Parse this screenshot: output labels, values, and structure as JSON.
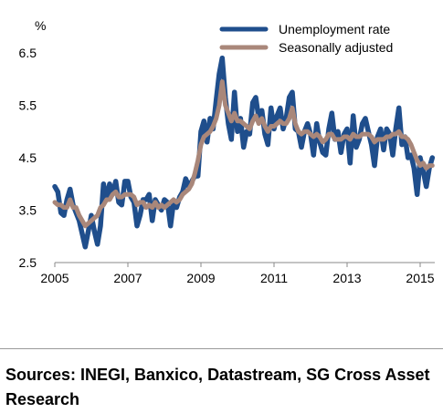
{
  "chart_data": {
    "type": "line",
    "ylabel": "%",
    "ylim": [
      2.5,
      6.5
    ],
    "yticks": [
      "6.5",
      "5.5",
      "4.5",
      "3.5",
      "2.5"
    ],
    "xlim": [
      2005,
      2015.4
    ],
    "xticks": [
      "2005",
      "2007",
      "2009",
      "2011",
      "2013",
      "2015"
    ],
    "grid": false,
    "legend_position": "top-right",
    "series": [
      {
        "name": "Unemployment rate",
        "color": "#1f4e8c",
        "x": [
          2005.0,
          2005.083,
          2005.167,
          2005.25,
          2005.333,
          2005.417,
          2005.5,
          2005.583,
          2005.667,
          2005.75,
          2005.833,
          2005.917,
          2006.0,
          2006.083,
          2006.167,
          2006.25,
          2006.333,
          2006.417,
          2006.5,
          2006.583,
          2006.667,
          2006.75,
          2006.833,
          2006.917,
          2007.0,
          2007.083,
          2007.167,
          2007.25,
          2007.333,
          2007.417,
          2007.5,
          2007.583,
          2007.667,
          2007.75,
          2007.833,
          2007.917,
          2008.0,
          2008.083,
          2008.167,
          2008.25,
          2008.333,
          2008.417,
          2008.5,
          2008.583,
          2008.667,
          2008.75,
          2008.833,
          2008.917,
          2009.0,
          2009.083,
          2009.167,
          2009.25,
          2009.333,
          2009.417,
          2009.5,
          2009.583,
          2009.667,
          2009.75,
          2009.833,
          2009.917,
          2010.0,
          2010.083,
          2010.167,
          2010.25,
          2010.333,
          2010.417,
          2010.5,
          2010.583,
          2010.667,
          2010.75,
          2010.833,
          2010.917,
          2011.0,
          2011.083,
          2011.167,
          2011.25,
          2011.333,
          2011.417,
          2011.5,
          2011.583,
          2011.667,
          2011.75,
          2011.833,
          2011.917,
          2012.0,
          2012.083,
          2012.167,
          2012.25,
          2012.333,
          2012.417,
          2012.5,
          2012.583,
          2012.667,
          2012.75,
          2012.833,
          2012.917,
          2013.0,
          2013.083,
          2013.167,
          2013.25,
          2013.333,
          2013.417,
          2013.5,
          2013.583,
          2013.667,
          2013.75,
          2013.833,
          2013.917,
          2014.0,
          2014.083,
          2014.167,
          2014.25,
          2014.333,
          2014.417,
          2014.5,
          2014.583,
          2014.667,
          2014.75,
          2014.833,
          2014.917,
          2015.0,
          2015.083,
          2015.167,
          2015.25,
          2015.333
        ],
        "values": [
          3.95,
          3.85,
          3.45,
          3.4,
          3.7,
          3.9,
          3.6,
          3.45,
          3.3,
          3.05,
          2.8,
          3.1,
          3.4,
          3.1,
          2.85,
          3.2,
          4.0,
          3.7,
          4.0,
          3.8,
          4.05,
          3.65,
          3.6,
          4.05,
          4.05,
          3.75,
          3.65,
          3.2,
          3.4,
          3.7,
          3.7,
          3.8,
          3.3,
          3.7,
          3.6,
          3.5,
          3.7,
          3.65,
          3.2,
          3.65,
          3.55,
          3.75,
          3.85,
          4.1,
          3.95,
          4.05,
          4.15,
          4.15,
          5.0,
          5.2,
          4.8,
          5.25,
          5.05,
          5.6,
          6.1,
          6.4,
          5.65,
          5.15,
          4.85,
          5.75,
          5.0,
          5.25,
          4.7,
          5.0,
          4.95,
          5.55,
          5.65,
          5.25,
          5.4,
          4.95,
          4.75,
          5.45,
          5.05,
          5.3,
          5.45,
          5.05,
          5.25,
          5.65,
          5.75,
          5.05,
          5.0,
          4.7,
          5.0,
          5.15,
          4.95,
          4.55,
          5.15,
          4.8,
          4.6,
          4.55,
          5.05,
          5.35,
          4.85,
          5.0,
          4.6,
          4.95,
          5.05,
          4.4,
          5.3,
          4.7,
          4.85,
          5.15,
          5.25,
          5.0,
          4.75,
          4.35,
          4.9,
          5.05,
          4.65,
          5.05,
          4.95,
          4.55,
          5.05,
          5.45,
          4.75,
          4.9,
          4.5,
          4.55,
          4.3,
          3.8,
          4.5,
          4.25,
          3.95,
          4.3,
          4.5
        ]
      },
      {
        "name": "Seasonally adjusted",
        "color": "#a9877a",
        "x": [
          2005.0,
          2005.083,
          2005.167,
          2005.25,
          2005.333,
          2005.417,
          2005.5,
          2005.583,
          2005.667,
          2005.75,
          2005.833,
          2005.917,
          2006.0,
          2006.083,
          2006.167,
          2006.25,
          2006.333,
          2006.417,
          2006.5,
          2006.583,
          2006.667,
          2006.75,
          2006.833,
          2006.917,
          2007.0,
          2007.083,
          2007.167,
          2007.25,
          2007.333,
          2007.417,
          2007.5,
          2007.583,
          2007.667,
          2007.75,
          2007.833,
          2007.917,
          2008.0,
          2008.083,
          2008.167,
          2008.25,
          2008.333,
          2008.417,
          2008.5,
          2008.583,
          2008.667,
          2008.75,
          2008.833,
          2008.917,
          2009.0,
          2009.083,
          2009.167,
          2009.25,
          2009.333,
          2009.417,
          2009.5,
          2009.583,
          2009.667,
          2009.75,
          2009.833,
          2009.917,
          2010.0,
          2010.083,
          2010.167,
          2010.25,
          2010.333,
          2010.417,
          2010.5,
          2010.583,
          2010.667,
          2010.75,
          2010.833,
          2010.917,
          2011.0,
          2011.083,
          2011.167,
          2011.25,
          2011.333,
          2011.417,
          2011.5,
          2011.583,
          2011.667,
          2011.75,
          2011.833,
          2011.917,
          2012.0,
          2012.083,
          2012.167,
          2012.25,
          2012.333,
          2012.417,
          2012.5,
          2012.583,
          2012.667,
          2012.75,
          2012.833,
          2012.917,
          2013.0,
          2013.083,
          2013.167,
          2013.25,
          2013.333,
          2013.417,
          2013.5,
          2013.583,
          2013.667,
          2013.75,
          2013.833,
          2013.917,
          2014.0,
          2014.083,
          2014.167,
          2014.25,
          2014.333,
          2014.417,
          2014.5,
          2014.583,
          2014.667,
          2014.75,
          2014.833,
          2014.917,
          2015.0,
          2015.083,
          2015.167,
          2015.25,
          2015.333
        ],
        "values": [
          3.65,
          3.6,
          3.6,
          3.55,
          3.55,
          3.7,
          3.55,
          3.55,
          3.4,
          3.3,
          3.2,
          3.25,
          3.3,
          3.35,
          3.4,
          3.55,
          3.6,
          3.7,
          3.7,
          3.8,
          3.85,
          3.75,
          3.75,
          3.8,
          3.8,
          3.8,
          3.75,
          3.6,
          3.65,
          3.65,
          3.55,
          3.6,
          3.55,
          3.65,
          3.55,
          3.6,
          3.55,
          3.6,
          3.65,
          3.7,
          3.65,
          3.7,
          3.8,
          3.85,
          3.9,
          4.0,
          4.2,
          4.45,
          4.75,
          4.9,
          4.95,
          5.0,
          5.1,
          5.25,
          5.5,
          5.95,
          5.5,
          5.35,
          5.2,
          5.35,
          5.2,
          5.2,
          5.15,
          5.1,
          5.05,
          5.2,
          5.3,
          5.15,
          5.25,
          5.1,
          5.0,
          5.1,
          5.1,
          5.15,
          5.2,
          5.15,
          5.15,
          5.25,
          5.45,
          5.15,
          5.0,
          4.95,
          5.0,
          5.0,
          4.95,
          4.9,
          4.95,
          4.9,
          4.8,
          4.85,
          4.95,
          4.95,
          4.85,
          4.85,
          4.85,
          4.9,
          4.9,
          4.85,
          4.95,
          4.9,
          4.9,
          4.95,
          4.95,
          4.95,
          4.9,
          4.8,
          4.85,
          4.85,
          4.85,
          4.9,
          4.9,
          4.95,
          4.95,
          5.0,
          4.9,
          4.9,
          4.85,
          4.75,
          4.6,
          4.45,
          4.35,
          4.4,
          4.3,
          4.35,
          4.35
        ]
      }
    ]
  },
  "source": {
    "text": "Sources: INEGI, Banxico, Datastream, SG Cross Asset Research"
  }
}
